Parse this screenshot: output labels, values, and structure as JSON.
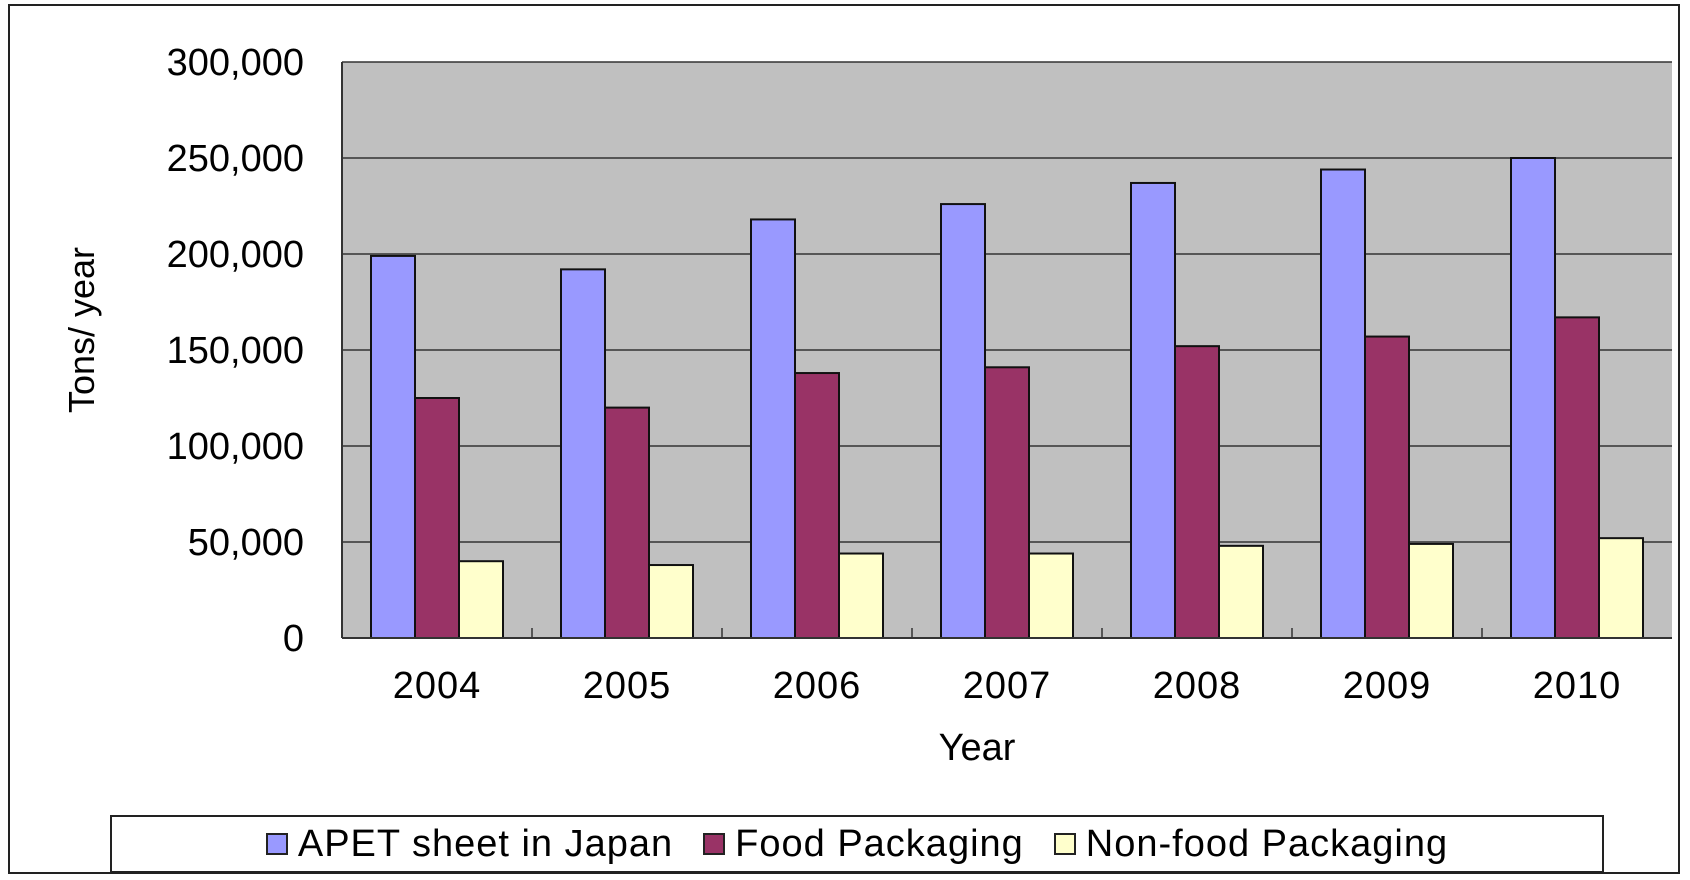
{
  "chart_data": {
    "type": "bar",
    "categories": [
      "2004",
      "2005",
      "2006",
      "2007",
      "2008",
      "2009",
      "2010"
    ],
    "series": [
      {
        "name": "APET sheet in Japan",
        "values": [
          199000,
          192000,
          218000,
          226000,
          237000,
          244000,
          250000
        ],
        "color": "#9999ff"
      },
      {
        "name": "Food Packaging",
        "values": [
          125000,
          120000,
          138000,
          141000,
          152000,
          157000,
          167000
        ],
        "color": "#993366"
      },
      {
        "name": "Non-food Packaging",
        "values": [
          40000,
          38000,
          44000,
          44000,
          48000,
          49000,
          52000
        ],
        "color": "#ffffcc"
      }
    ],
    "xlabel": "Year",
    "ylabel": "Tons/ year",
    "ylim": [
      0,
      300000
    ],
    "yticks": [
      0,
      50000,
      100000,
      150000,
      200000,
      250000,
      300000
    ],
    "ytick_labels": [
      "0",
      "50,000",
      "100,000",
      "150,000",
      "200,000",
      "250,000",
      "300,000"
    ],
    "plot_background": "#c0c0c0",
    "grid": true,
    "legend_position": "bottom"
  }
}
